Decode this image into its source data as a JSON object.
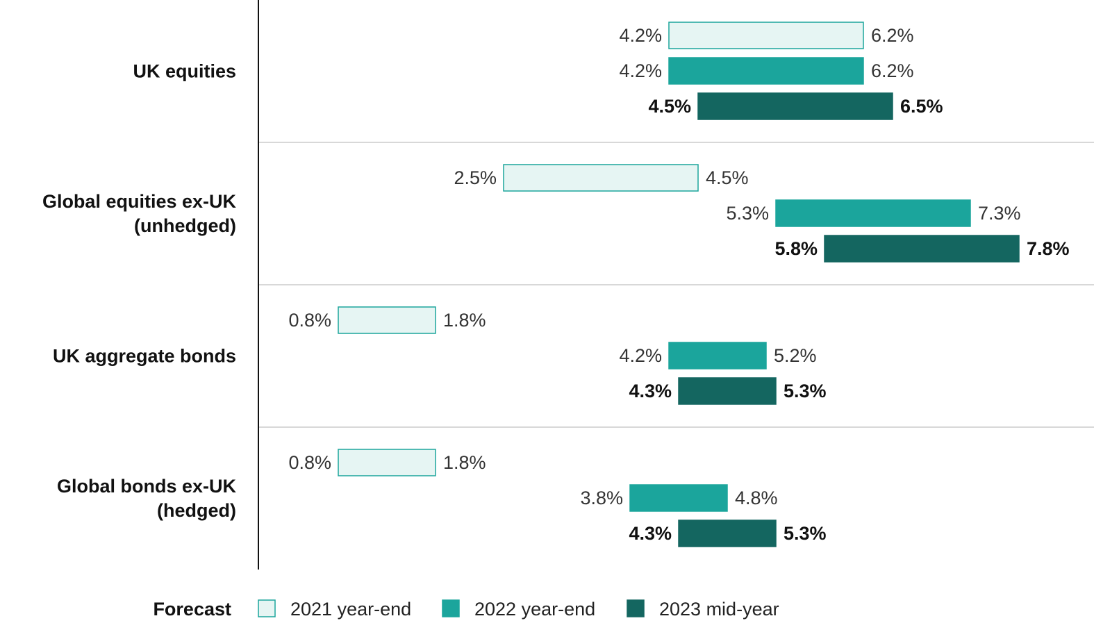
{
  "chart_data": {
    "type": "bar",
    "subtype": "floating-range",
    "orientation": "horizontal",
    "categories": [
      [
        "UK equities"
      ],
      [
        "Global equities ex-UK",
        "(unhedged)"
      ],
      [
        "UK aggregate bonds"
      ],
      [
        "Global bonds ex-UK",
        "(hedged)"
      ]
    ],
    "series": [
      {
        "name": "2021 year-end",
        "color": "#e6f5f3",
        "stroke": "#1ba59c",
        "bold_labels": false,
        "ranges": [
          [
            4.2,
            6.2
          ],
          [
            2.5,
            4.5
          ],
          [
            0.8,
            1.8
          ],
          [
            0.8,
            1.8
          ]
        ],
        "low_labels": [
          "4.2%",
          "2.5%",
          "0.8%",
          "0.8%"
        ],
        "high_labels": [
          "6.2%",
          "4.5%",
          "1.8%",
          "1.8%"
        ]
      },
      {
        "name": "2022 year-end",
        "color": "#1ba59c",
        "stroke": "#1ba59c",
        "bold_labels": false,
        "ranges": [
          [
            4.2,
            6.2
          ],
          [
            5.3,
            7.3
          ],
          [
            4.2,
            5.2
          ],
          [
            3.8,
            4.8
          ]
        ],
        "low_labels": [
          "4.2%",
          "5.3%",
          "4.2%",
          "3.8%"
        ],
        "high_labels": [
          "6.2%",
          "7.3%",
          "5.2%",
          "4.8%"
        ]
      },
      {
        "name": "2023 mid-year",
        "color": "#146660",
        "stroke": "#146660",
        "bold_labels": true,
        "ranges": [
          [
            4.5,
            6.5
          ],
          [
            5.8,
            7.8
          ],
          [
            4.3,
            5.3
          ],
          [
            4.3,
            5.3
          ]
        ],
        "low_labels": [
          "4.5%",
          "5.8%",
          "4.3%",
          "4.3%"
        ],
        "high_labels": [
          "6.5%",
          "7.8%",
          "5.3%",
          "5.3%"
        ]
      }
    ],
    "xlim": [
      -0.2,
      10.0
    ],
    "axis_visible": false,
    "grid": "horizontal separators between categories",
    "legend": {
      "title": "Forecast",
      "placement": "bottom"
    }
  }
}
